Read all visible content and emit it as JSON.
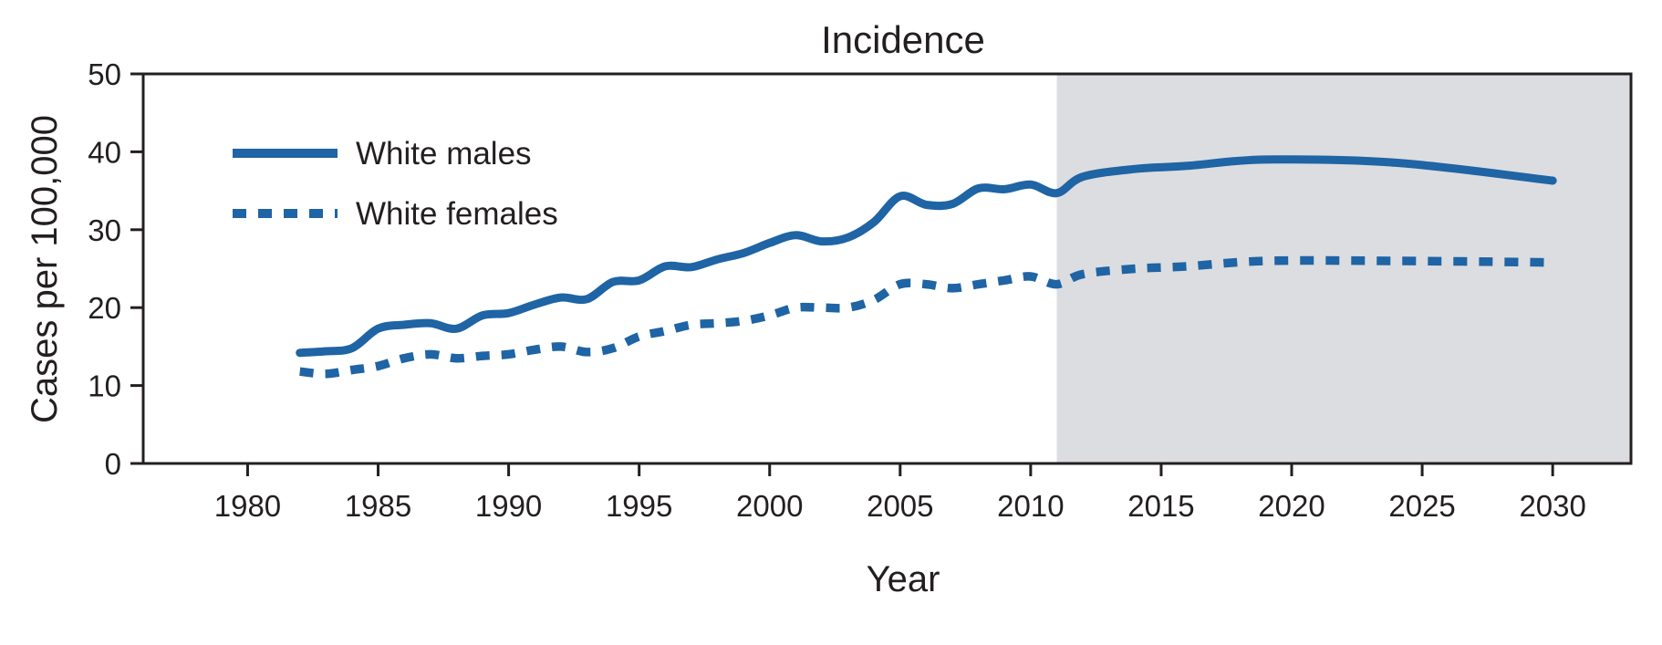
{
  "chart_data": {
    "type": "line",
    "title": "Incidence",
    "xlabel": "Year",
    "ylabel": "Cases per 100,000",
    "xlim": [
      1976,
      2033
    ],
    "ylim": [
      0,
      50
    ],
    "x_ticks": [
      1980,
      1985,
      1990,
      1995,
      2000,
      2005,
      2010,
      2015,
      2020,
      2025,
      2030
    ],
    "y_ticks": [
      0,
      10,
      20,
      30,
      40,
      50
    ],
    "projection_start": 2011,
    "projection_shade_color": "#dcdde0",
    "legend_position": "top-left",
    "series": [
      {
        "name": "White males",
        "style": "solid",
        "color": "#1f64a4",
        "x": [
          1982,
          1983,
          1984,
          1985,
          1986,
          1987,
          1988,
          1989,
          1990,
          1991,
          1992,
          1993,
          1994,
          1995,
          1996,
          1997,
          1998,
          1999,
          2000,
          2001,
          2002,
          2003,
          2004,
          2005,
          2006,
          2007,
          2008,
          2009,
          2010,
          2011,
          2012,
          2014,
          2016,
          2019,
          2024,
          2030
        ],
        "values": [
          14.2,
          14.4,
          14.8,
          17.3,
          17.8,
          18.0,
          17.3,
          19.0,
          19.3,
          20.4,
          21.3,
          21.1,
          23.3,
          23.5,
          25.3,
          25.2,
          26.2,
          27.0,
          28.3,
          29.3,
          28.5,
          29.0,
          31.0,
          34.3,
          33.2,
          33.3,
          35.3,
          35.2,
          35.8,
          34.7,
          36.8,
          37.8,
          38.2,
          39.0,
          38.6,
          36.3
        ]
      },
      {
        "name": "White females",
        "style": "dotted",
        "color": "#1f64a4",
        "x": [
          1982,
          1983,
          1984,
          1985,
          1986,
          1987,
          1988,
          1989,
          1990,
          1991,
          1992,
          1993,
          1994,
          1995,
          1996,
          1997,
          1998,
          1999,
          2000,
          2001,
          2002,
          2003,
          2004,
          2005,
          2006,
          2007,
          2008,
          2009,
          2010,
          2011,
          2012,
          2014,
          2016,
          2019,
          2024,
          2030
        ],
        "values": [
          11.8,
          11.5,
          12.0,
          12.5,
          13.5,
          14.0,
          13.5,
          13.8,
          14.0,
          14.6,
          15.0,
          14.3,
          14.8,
          16.3,
          17.0,
          17.8,
          18.0,
          18.3,
          19.0,
          20.0,
          20.0,
          20.0,
          21.0,
          23.0,
          23.0,
          22.5,
          23.0,
          23.5,
          24.0,
          23.0,
          24.3,
          25.0,
          25.3,
          26.0,
          26.0,
          25.8
        ]
      }
    ]
  }
}
